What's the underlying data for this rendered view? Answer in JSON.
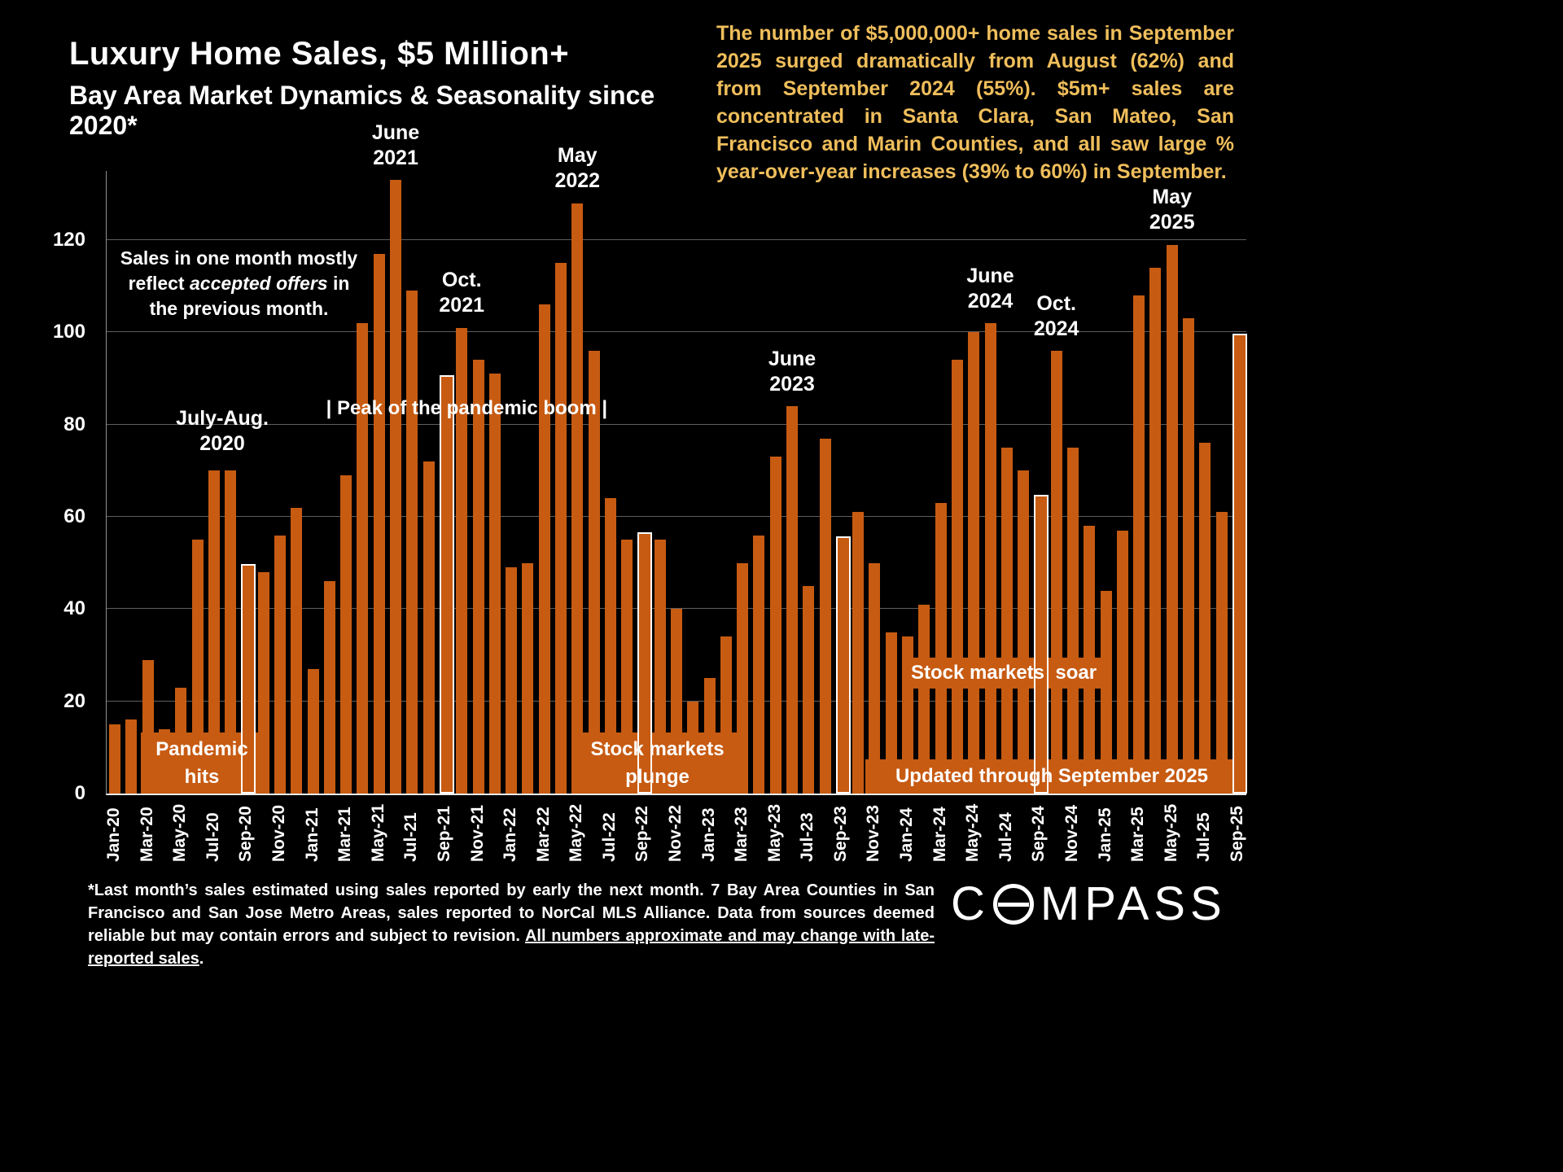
{
  "colors": {
    "background": "#000000",
    "bar_orange": "#C75B12",
    "gold_text": "#EFBE5B",
    "grid_line": "#5E5E5E",
    "text_white": "#FFFFFF"
  },
  "commentary": "The number of $5,000,000+ home sales in September 2025 surged dramatically from August (62%) and from September 2024 (55%). $5m+ sales are concentrated in Santa Clara, San Mateo, San Francisco and Marin Counties, and all saw large % year-over-year increases (39% to 60%) in September.",
  "note": {
    "line1": "Sales in one month mostly",
    "line2_pre": "reflect ",
    "line2_italic": "accepted offers",
    "line2_post": " in",
    "line3": "the previous month."
  },
  "boxes": {
    "pandemic": {
      "line1": "Pandemic",
      "line2": "hits"
    },
    "plunge": {
      "line1": "Stock markets",
      "line2": "plunge"
    },
    "soar": {
      "line1": "Stock markets  soar"
    },
    "updated": {
      "line1": "Updated through September 2025"
    }
  },
  "footnote": {
    "text": "*Last month’s sales estimated using sales reported by early the next month. 7 Bay Area Counties in San Francisco and San Jose Metro Areas, sales reported to NorCal MLS Alliance.  Data from sources deemed reliable but may contain errors and subject to revision. ",
    "underlined": "All numbers approximate and may change with late-reported sales",
    "after": "."
  },
  "brand": {
    "prefix": "C",
    "suffix": "MPASS"
  },
  "chart_data": {
    "type": "bar",
    "title": "Luxury Home Sales, $5 Million+",
    "subtitle": "Bay Area Market Dynamics & Seasonality since 2020*",
    "xlabel": "",
    "ylabel": "",
    "ylim": [
      0,
      135
    ],
    "yticks": [
      0,
      20,
      40,
      60,
      80,
      100,
      120
    ],
    "grid": true,
    "legend": "none",
    "bar_color": "#C75B12",
    "highlight_border_color": "#FFFFFF",
    "xtick_every": 2,
    "x": [
      "Jan-20",
      "Feb-20",
      "Mar-20",
      "Apr-20",
      "May-20",
      "Jun-20",
      "Jul-20",
      "Aug-20",
      "Sep-20",
      "Oct-20",
      "Nov-20",
      "Dec-20",
      "Jan-21",
      "Feb-21",
      "Mar-21",
      "Apr-21",
      "May-21",
      "Jun-21",
      "Jul-21",
      "Aug-21",
      "Sep-21",
      "Oct-21",
      "Nov-21",
      "Dec-21",
      "Jan-22",
      "Feb-22",
      "Mar-22",
      "Apr-22",
      "May-22",
      "Jun-22",
      "Jul-22",
      "Aug-22",
      "Sep-22",
      "Oct-22",
      "Nov-22",
      "Dec-22",
      "Jan-23",
      "Feb-23",
      "Mar-23",
      "Apr-23",
      "May-23",
      "Jun-23",
      "Jul-23",
      "Aug-23",
      "Sep-23",
      "Oct-23",
      "Nov-23",
      "Dec-23",
      "Jan-24",
      "Feb-24",
      "Mar-24",
      "Apr-24",
      "May-24",
      "Jun-24",
      "Jul-24",
      "Aug-24",
      "Sep-24",
      "Oct-24",
      "Nov-24",
      "Dec-24",
      "Jan-25",
      "Feb-25",
      "Mar-25",
      "Apr-25",
      "May-25",
      "Jun-25",
      "Jul-25",
      "Aug-25",
      "Sep-25"
    ],
    "values": [
      15,
      16,
      29,
      14,
      23,
      55,
      70,
      70,
      49,
      48,
      56,
      62,
      27,
      46,
      69,
      102,
      117,
      133,
      109,
      72,
      90,
      101,
      94,
      91,
      49,
      50,
      106,
      115,
      128,
      96,
      64,
      55,
      56,
      55,
      40,
      20,
      25,
      34,
      50,
      56,
      73,
      84,
      45,
      77,
      55,
      61,
      50,
      35,
      34,
      41,
      63,
      94,
      100,
      102,
      75,
      70,
      64,
      96,
      75,
      58,
      44,
      57,
      108,
      114,
      119,
      103,
      76,
      61,
      99
    ],
    "highlighted_x": [
      "Sep-20",
      "Sep-21",
      "Sep-22",
      "Sep-23",
      "Sep-24",
      "Sep-25"
    ],
    "annotations": [
      {
        "lines": [
          "July-Aug.",
          "2020"
        ],
        "anchor_index": 6.5,
        "above_value": 71
      },
      {
        "lines": [
          "June",
          "2021"
        ],
        "anchor_index": 17,
        "above_value": 133
      },
      {
        "lines": [
          "Oct.",
          "2021"
        ],
        "anchor_index": 21,
        "above_value": 101
      },
      {
        "lines": [
          "May",
          "2022"
        ],
        "anchor_index": 28,
        "above_value": 128
      },
      {
        "lines": [
          "June",
          "2023"
        ],
        "anchor_index": 41,
        "above_value": 84
      },
      {
        "lines": [
          "June",
          "2024"
        ],
        "anchor_index": 53,
        "above_value": 102
      },
      {
        "lines": [
          "Oct.",
          "2024"
        ],
        "anchor_index": 57,
        "above_value": 96
      },
      {
        "lines": [
          "May",
          "2025"
        ],
        "anchor_index": 64,
        "above_value": 119
      }
    ],
    "banner": {
      "text": "| Peak of the pandemic boom |",
      "anchor_index": 21.3,
      "bottom_value": 81
    }
  }
}
